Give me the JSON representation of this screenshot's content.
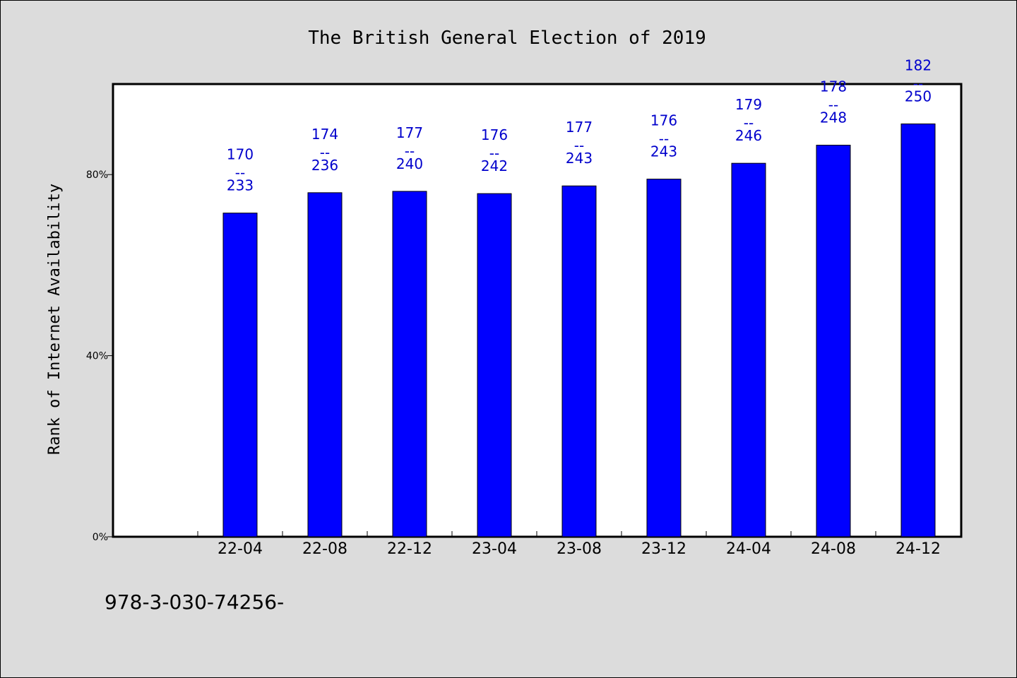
{
  "chart_data": {
    "type": "bar",
    "title": "The British General Election of 2019",
    "ylabel": "Rank of Internet Availability",
    "xlabel": "",
    "categories": [
      "22-04",
      "22-08",
      "22-12",
      "23-04",
      "23-08",
      "23-12",
      "24-04",
      "24-08",
      "24-12"
    ],
    "values": [
      71.5,
      76.0,
      76.3,
      75.8,
      77.5,
      79.0,
      82.5,
      86.5,
      91.2
    ],
    "yticks": [
      "0%",
      "40%",
      "80%"
    ],
    "ylim": [
      0,
      100
    ],
    "labels_top": [
      "170",
      "174",
      "177",
      "176",
      "177",
      "176",
      "179",
      "178",
      "182"
    ],
    "labels_bottom": [
      "233",
      "236",
      "240",
      "242",
      "243",
      "243",
      "246",
      "248",
      "250"
    ],
    "label_separator": "--",
    "bar_color": "#0000ff",
    "label_color": "#0000cc",
    "grid": false,
    "legend": "none"
  },
  "footer": {
    "isbn": "978-3-030-74256-"
  }
}
